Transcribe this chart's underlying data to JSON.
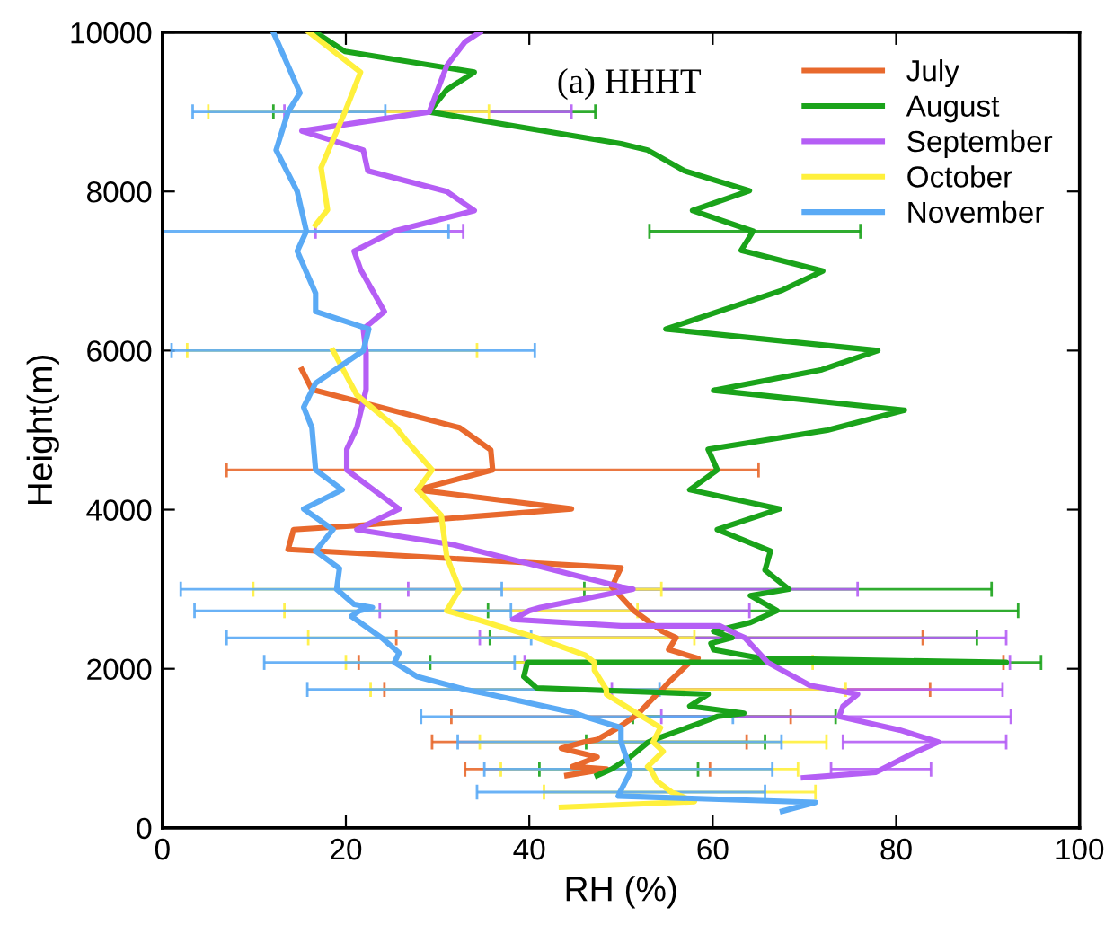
{
  "chart_data": {
    "type": "line",
    "xlabel": "RH (%)",
    "ylabel": "Height(m)",
    "annotations": [
      "(a) HHHT"
    ],
    "xlim": [
      0,
      100
    ],
    "ylim": [
      0,
      10000
    ],
    "xticks": [
      0,
      20,
      40,
      60,
      80,
      100
    ],
    "yticks": [
      0,
      2000,
      4000,
      6000,
      8000,
      10000
    ],
    "grid": false,
    "legend": "top right",
    "marker": "none",
    "line_style": "solid",
    "series": [
      {
        "name": "July",
        "color": "#e8692d",
        "x": [
          15.2,
          16.3,
          32.4,
          35.8,
          36.0,
          27.8,
          44.6,
          21.2,
          14.3,
          13.7,
          50.0,
          49.0,
          51.4,
          54.5,
          56.0,
          55.2,
          58.4,
          57.5,
          55.2,
          54.5,
          53.9,
          52.0,
          51.5,
          49.7,
          47.4,
          46.0,
          43.5,
          47.4,
          44.7,
          48.4,
          44.1
        ],
        "values": [
          5760,
          5510,
          5030,
          4750,
          4500,
          4250,
          4010,
          3800,
          3750,
          3500,
          3270,
          3030,
          2730,
          2470,
          2390,
          2240,
          2130,
          2080,
          1830,
          1740,
          1680,
          1450,
          1400,
          1260,
          1110,
          1080,
          1000,
          890,
          770,
          740,
          660
        ],
        "xerrors": [
          null,
          null,
          null,
          null,
          [
            7,
            65
          ],
          null,
          null,
          null,
          null,
          null,
          null,
          null,
          null,
          null,
          [
            25.5,
            82.9
          ],
          null,
          null,
          [
            21.4,
            91.7
          ],
          null,
          [
            24.2,
            83.7
          ],
          null,
          null,
          [
            31.5,
            68.5
          ],
          null,
          null,
          [
            29.4,
            63.7
          ],
          null,
          null,
          null,
          [
            33,
            59.7
          ],
          null
        ]
      },
      {
        "name": "August",
        "color": "#1aa31a",
        "x": [
          16.7,
          19.9,
          34.0,
          31.0,
          29.1,
          50.0,
          52.9,
          56.9,
          64.0,
          57.8,
          64.4,
          63.1,
          72.0,
          67.6,
          54.9,
          78.0,
          71.9,
          60.1,
          80.9,
          72.5,
          59.5,
          60.5,
          57.5,
          67.3,
          60.5,
          66.3,
          65.7,
          68.3,
          64.1,
          67.0,
          64.1,
          60.1,
          62.1,
          59.8,
          60.1,
          65.4,
          92,
          39.8,
          39.4,
          40.8,
          59.5,
          57.5,
          63.4,
          60.5,
          58.2,
          53.6,
          53.0,
          51,
          49,
          47.4
        ],
        "values": [
          10000,
          9760,
          9500,
          9280,
          9000,
          8600,
          8520,
          8260,
          8010,
          7760,
          7500,
          7260,
          7000,
          6760,
          6270,
          6000,
          5760,
          5500,
          5250,
          5000,
          4760,
          4500,
          4250,
          4010,
          3750,
          3480,
          3240,
          3000,
          2920,
          2730,
          2580,
          2470,
          2390,
          2320,
          2240,
          2130,
          2080,
          2080,
          1900,
          1760,
          1680,
          1530,
          1440,
          1400,
          1300,
          1110,
          1080,
          890,
          740,
          660
        ],
        "xerrors": [
          null,
          null,
          null,
          null,
          [
            12.1,
            47.2
          ],
          null,
          null,
          null,
          null,
          null,
          [
            53.1,
            76.1
          ],
          null,
          null,
          null,
          null,
          null,
          null,
          null,
          null,
          null,
          null,
          null,
          null,
          null,
          null,
          null,
          null,
          [
            46,
            90.4
          ],
          null,
          [
            35.5,
            93.3
          ],
          null,
          null,
          [
            35.7,
            88.8
          ],
          null,
          null,
          null,
          null,
          [
            29.2,
            95.8
          ],
          null,
          null,
          null,
          null,
          null,
          [
            51.3,
            73.4
          ],
          null,
          null,
          [
            46.2,
            65.7
          ],
          null,
          [
            41.1,
            58.4
          ],
          null
        ]
      },
      {
        "name": "September",
        "color": "#b55ef5",
        "x": [
          34.6,
          33.0,
          31.0,
          29.1,
          15.2,
          21.9,
          22.4,
          31.0,
          34.0,
          25.2,
          20.9,
          21.6,
          24.2,
          21.9,
          22.2,
          22.2,
          21.2,
          20.1,
          20.1,
          25.8,
          21.2,
          31.7,
          50.0,
          51.3,
          41.2,
          40,
          38.2,
          50,
          60.8,
          62.7,
          63.5,
          66.0,
          70.6,
          73,
          75.8,
          74.2,
          73.8,
          80.4,
          84.6,
          81.7,
          78.5,
          77.8,
          69.9
        ],
        "values": [
          10000,
          9880,
          9580,
          9000,
          8760,
          8520,
          8260,
          8000,
          7760,
          7500,
          7250,
          7020,
          6490,
          6270,
          5970,
          5510,
          5030,
          4760,
          4500,
          4010,
          3750,
          3560,
          3030,
          3000,
          2770,
          2730,
          2620,
          2540,
          2540,
          2430,
          2390,
          2080,
          1790,
          1740,
          1680,
          1530,
          1400,
          1230,
          1080,
          930,
          740,
          700,
          630
        ],
        "xerrors": [
          null,
          null,
          null,
          [
            13.3,
            44.6
          ],
          null,
          null,
          null,
          null,
          null,
          [
            16.7,
            32.8
          ],
          null,
          null,
          null,
          null,
          null,
          null,
          null,
          null,
          null,
          null,
          null,
          null,
          null,
          [
            26.8,
            75.8
          ],
          null,
          [
            23.7,
            64
          ],
          null,
          null,
          null,
          null,
          [
            34.6,
            92
          ],
          [
            39.5,
            92.4
          ],
          null,
          [
            49,
            91.6
          ],
          null,
          null,
          [
            54.4,
            92.5
          ],
          null,
          [
            74.2,
            92
          ],
          null,
          [
            72.9,
            83.8
          ],
          null,
          null
        ]
      },
      {
        "name": "October",
        "color": "#fff03c",
        "x": [
          16.0,
          21.6,
          19.9,
          17.3,
          18.0,
          16.7,
          null,
          18.6,
          21.2,
          25.5,
          26.5,
          29.4,
          27.8,
          30.4,
          31.0,
          32.4,
          31.0,
          34.3,
          40.8,
          46.1,
          47.1,
          47.1,
          48.4,
          48.4,
          51.6,
          54.3,
          53.5,
          54.6,
          52.9,
          53.2,
          53.9,
          55.5,
          58,
          43.5
        ],
        "values": [
          10000,
          9500,
          9000,
          8300,
          7770,
          7580,
          null,
          6000,
          5440,
          5030,
          4880,
          4500,
          4250,
          3930,
          3410,
          3000,
          2730,
          2620,
          2390,
          2170,
          2080,
          1980,
          1740,
          1680,
          1450,
          1260,
          1080,
          960,
          770,
          740,
          590,
          450,
          330,
          260
        ],
        "xerrors": [
          null,
          null,
          [
            5,
            35.6
          ],
          null,
          null,
          null,
          null,
          [
            2.7,
            34.3
          ],
          null,
          null,
          null,
          null,
          null,
          null,
          null,
          [
            9.9,
            54.4
          ],
          [
            13.3,
            51.8
          ],
          null,
          [
            15.9,
            58
          ],
          null,
          [
            20,
            70.9
          ],
          null,
          [
            22.7,
            74.5
          ],
          null,
          null,
          null,
          [
            34.6,
            72.4
          ],
          null,
          null,
          [
            36.9,
            69.3
          ],
          null,
          [
            41.6,
            71.2
          ],
          null,
          null
        ]
      },
      {
        "name": "November",
        "color": "#5aaaf5",
        "x": [
          12.1,
          15.0,
          13.7,
          12.4,
          14.7,
          15.7,
          14.7,
          16.7,
          16.7,
          22.5,
          21.9,
          16.7,
          15.4,
          16.3,
          16.7,
          19.6,
          15.4,
          18.6,
          16.7,
          19.3,
          19.0,
          20.9,
          22.9,
          21.5,
          20.6,
          23.9,
          25.8,
          25.3,
          27.8,
          33,
          35.6,
          44.8,
          46,
          50,
          50,
          51,
          51,
          49.9,
          49.7,
          71.2,
          67.6
        ],
        "values": [
          10000,
          9240,
          9000,
          8520,
          8000,
          7500,
          7250,
          6720,
          6490,
          6270,
          6000,
          5590,
          5290,
          5030,
          4500,
          4250,
          4010,
          3750,
          3480,
          3260,
          3000,
          2810,
          2770,
          2730,
          2660,
          2390,
          2200,
          2080,
          1900,
          1740,
          1680,
          1450,
          1400,
          1260,
          1080,
          740,
          700,
          450,
          400,
          320,
          210
        ],
        "xerrors": [
          null,
          null,
          [
            3.3,
            24.3
          ],
          null,
          null,
          [
            0,
            31.2
          ],
          null,
          null,
          null,
          null,
          [
            1,
            40.6
          ],
          null,
          null,
          null,
          null,
          null,
          null,
          null,
          null,
          null,
          [
            2,
            37
          ],
          null,
          null,
          [
            3.5,
            38
          ],
          null,
          [
            7,
            40.2
          ],
          null,
          [
            11.1,
            38.4
          ],
          null,
          [
            15.8,
            54.2
          ],
          null,
          null,
          [
            28.2,
            62.2
          ],
          null,
          [
            32.2,
            67.5
          ],
          [
            35.1,
            66.5
          ],
          null,
          [
            34.3,
            65.7
          ],
          null,
          null,
          null
        ]
      }
    ]
  }
}
